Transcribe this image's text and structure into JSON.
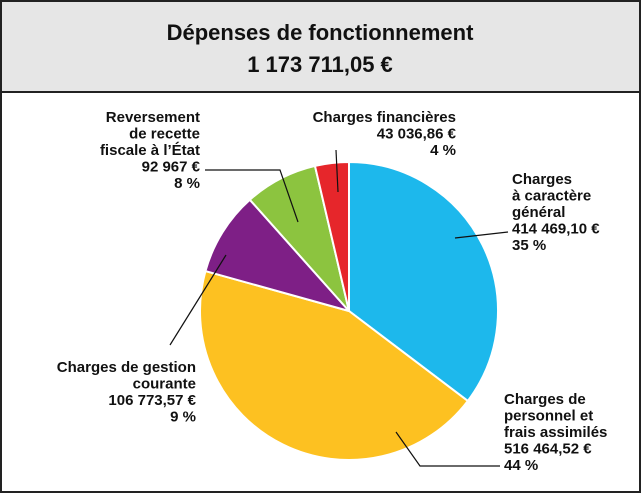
{
  "chart_data": {
    "type": "pie",
    "title": "Dépenses de fonctionnement",
    "subtitle": "1 173 711,05 €",
    "categories": [
      [
        "Charges",
        "à caractère",
        "général"
      ],
      [
        "Charges de",
        "personnel et",
        "frais assimilés"
      ],
      [
        "Charges de gestion",
        "courante"
      ],
      [
        "Reversement",
        "de recette",
        "fiscale à l’État"
      ],
      [
        "Charges financières"
      ]
    ],
    "values": [
      414469.1,
      516464.52,
      106773.57,
      92967,
      43036.86
    ],
    "value_labels": [
      "414 469,10 €",
      "516 464,52 €",
      "106 773,57 €",
      "92 967 €",
      "43 036,86 €"
    ],
    "percent_labels": [
      "35 %",
      "44 %",
      "9 %",
      "8 %",
      "4 %"
    ],
    "colors": [
      "#1db8ec",
      "#fdc121",
      "#7e1f86",
      "#8cc43f",
      "#e6262b"
    ]
  }
}
